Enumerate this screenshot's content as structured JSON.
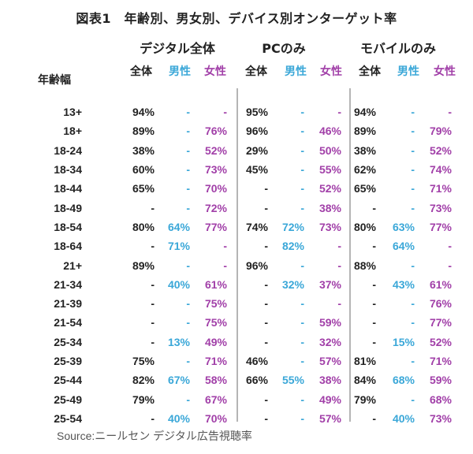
{
  "title": "図表1　年齢別、男女別、デバイス別オンターゲット率",
  "age_header": "年齢幅",
  "groups": [
    {
      "label": "デジタル全体",
      "subs": [
        "全体",
        "男性",
        "女性"
      ]
    },
    {
      "label": "PCのみ",
      "subs": [
        "全体",
        "男性",
        "女性"
      ]
    },
    {
      "label": "モバイルのみ",
      "subs": [
        "全体",
        "男性",
        "女性"
      ]
    }
  ],
  "colors": {
    "total": "#222222",
    "male": "#3aa7d8",
    "female": "#a13fa8"
  },
  "rows": [
    {
      "age": "13+",
      "values": [
        "94%",
        "-",
        "-",
        "95%",
        "-",
        "-",
        "94%",
        "-",
        "-"
      ]
    },
    {
      "age": "18+",
      "values": [
        "89%",
        "-",
        "76%",
        "96%",
        "-",
        "46%",
        "89%",
        "-",
        "79%"
      ]
    },
    {
      "age": "18-24",
      "values": [
        "38%",
        "-",
        "52%",
        "29%",
        "-",
        "50%",
        "38%",
        "-",
        "52%"
      ]
    },
    {
      "age": "18-34",
      "values": [
        "60%",
        "-",
        "73%",
        "45%",
        "-",
        "55%",
        "62%",
        "-",
        "74%"
      ]
    },
    {
      "age": "18-44",
      "values": [
        "65%",
        "-",
        "70%",
        "-",
        "-",
        "52%",
        "65%",
        "-",
        "71%"
      ]
    },
    {
      "age": "18-49",
      "values": [
        "-",
        "-",
        "72%",
        "-",
        "-",
        "38%",
        "-",
        "-",
        "73%"
      ]
    },
    {
      "age": "18-54",
      "values": [
        "80%",
        "64%",
        "77%",
        "74%",
        "72%",
        "73%",
        "80%",
        "63%",
        "77%"
      ]
    },
    {
      "age": "18-64",
      "values": [
        "-",
        "71%",
        "-",
        "-",
        "82%",
        "-",
        "-",
        "64%",
        "-"
      ]
    },
    {
      "age": "21+",
      "values": [
        "89%",
        "-",
        "-",
        "96%",
        "-",
        "-",
        "88%",
        "-",
        "-"
      ]
    },
    {
      "age": "21-34",
      "values": [
        "-",
        "40%",
        "61%",
        "-",
        "32%",
        "37%",
        "-",
        "43%",
        "61%"
      ]
    },
    {
      "age": "21-39",
      "values": [
        "-",
        "-",
        "75%",
        "-",
        "-",
        "-",
        "-",
        "-",
        "76%"
      ]
    },
    {
      "age": "21-54",
      "values": [
        "-",
        "-",
        "75%",
        "-",
        "-",
        "59%",
        "-",
        "-",
        "77%"
      ]
    },
    {
      "age": "25-34",
      "values": [
        "-",
        "13%",
        "49%",
        "-",
        "-",
        "32%",
        "-",
        "15%",
        "52%"
      ]
    },
    {
      "age": "25-39",
      "values": [
        "75%",
        "-",
        "71%",
        "46%",
        "-",
        "57%",
        "81%",
        "-",
        "71%"
      ]
    },
    {
      "age": "25-44",
      "values": [
        "82%",
        "67%",
        "58%",
        "66%",
        "55%",
        "38%",
        "84%",
        "68%",
        "59%"
      ]
    },
    {
      "age": "25-49",
      "values": [
        "79%",
        "-",
        "67%",
        "-",
        "-",
        "49%",
        "79%",
        "-",
        "68%"
      ]
    },
    {
      "age": "25-54",
      "values": [
        "-",
        "40%",
        "70%",
        "-",
        "-",
        "57%",
        "-",
        "40%",
        "73%"
      ]
    }
  ],
  "source": "Source:ニールセン デジタル広告視聴率"
}
